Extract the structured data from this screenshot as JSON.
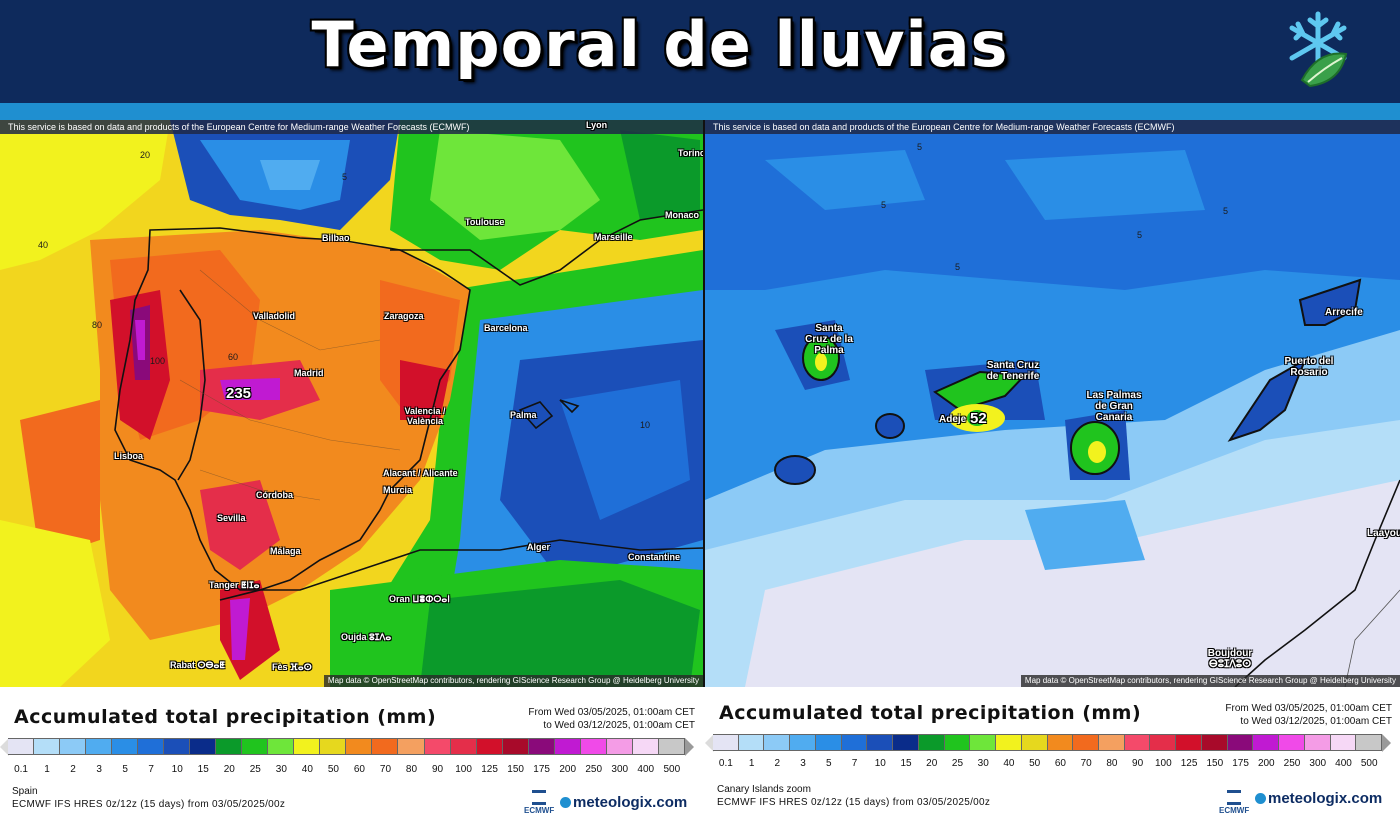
{
  "header": {
    "title": "Temporal de lluvias",
    "logo_icon": "snowflake-leaf-icon"
  },
  "colors": {
    "banner": "#0e2a5c",
    "strip": "#1f8fd0"
  },
  "maps": [
    {
      "id": "spain",
      "ecmwf_note": "This service is based on data and products of the European Centre for Medium-range Weather Forecasts (ECMWF)",
      "attribution": "Map data © OpenStreetMap contributors, rendering GIScience Research Group @ Heidelberg University",
      "cities": [
        "Bilbao",
        "Toulouse",
        "Marseille",
        "Monaco",
        "Torino",
        "Lyon",
        "Valladolid",
        "Zaragoza",
        "Barcelona",
        "Madrid",
        "Valencia / València",
        "Palma",
        "Lisboa",
        "Alacant / Alicante",
        "Murcia",
        "Córdoba",
        "Sevilla",
        "Málaga",
        "Tanger ⵟⵏⵊⴰ",
        "Alger",
        "Constantine",
        "Oran ⵡⴻⵀⵔⴰⵏ",
        "Oujda ⵓⵊⴷⴰ",
        "Rabat ⵔⴱⴰⵟ",
        "Fès ⴼⴰⵙ"
      ],
      "max_value": "235",
      "contour_labels": [
        "5",
        "20",
        "40",
        "60",
        "80",
        "100",
        "10"
      ]
    },
    {
      "id": "canary",
      "ecmwf_note": "This service is based on data and products of the European Centre for Medium-range Weather Forecasts (ECMWF)",
      "attribution": "Map data © OpenStreetMap contributors, rendering GIScience Research Group @ Heidelberg University",
      "cities": [
        "Santa Cruz de la Palma",
        "Santa Cruz de Tenerife",
        "Adeje",
        "Las Palmas de Gran Canaria",
        "Puerto del Rosario",
        "Arrecife",
        "Laayoune",
        "Boujdour ⴱⵓⵊⴷⵓⵔ"
      ],
      "max_value": "52",
      "contour_labels": [
        "5"
      ]
    }
  ],
  "legends": [
    {
      "title": "Accumulated total precipitation (mm)",
      "period_from": "From Wed 03/05/2025, 01:00am CET",
      "period_to": "to Wed 03/12/2025, 01:00am CET",
      "region": "Spain",
      "model": "ECMWF IFS HRES 0z/12z (15 days) from 03/05/2025/00z",
      "ecmwf_label": "ECMWF",
      "brand": "meteologix.com"
    },
    {
      "title": "Accumulated total precipitation (mm)",
      "period_from": "From Wed 03/05/2025, 01:00am CET",
      "period_to": "to Wed 03/12/2025, 01:00am CET",
      "region": "Canary Islands zoom",
      "model": "ECMWF IFS HRES 0z/12z (15 days) from 03/05/2025/00z",
      "ecmwf_label": "ECMWF",
      "brand": "meteologix.com"
    }
  ],
  "scale": {
    "ticks": [
      "0.1",
      "1",
      "2",
      "3",
      "5",
      "7",
      "10",
      "15",
      "20",
      "25",
      "30",
      "40",
      "50",
      "60",
      "70",
      "80",
      "90",
      "100",
      "125",
      "150",
      "175",
      "200",
      "250",
      "300",
      "400",
      "500"
    ],
    "colors": [
      "#e4e4f4",
      "#b4def8",
      "#8ccaf6",
      "#50acf0",
      "#2a8ee6",
      "#1f6fd8",
      "#1b4fb8",
      "#0a2c8a",
      "#0b9a2a",
      "#20c41e",
      "#6ee63a",
      "#f2f21e",
      "#e6d81e",
      "#f28a1e",
      "#f26a1e",
      "#f4a060",
      "#f44a6a",
      "#e42e4a",
      "#d2102a",
      "#a80a2a",
      "#8a0a7a",
      "#c01ad2",
      "#f04ae8",
      "#f49ce6",
      "#f6d8f6",
      "#c8c8c8"
    ]
  }
}
